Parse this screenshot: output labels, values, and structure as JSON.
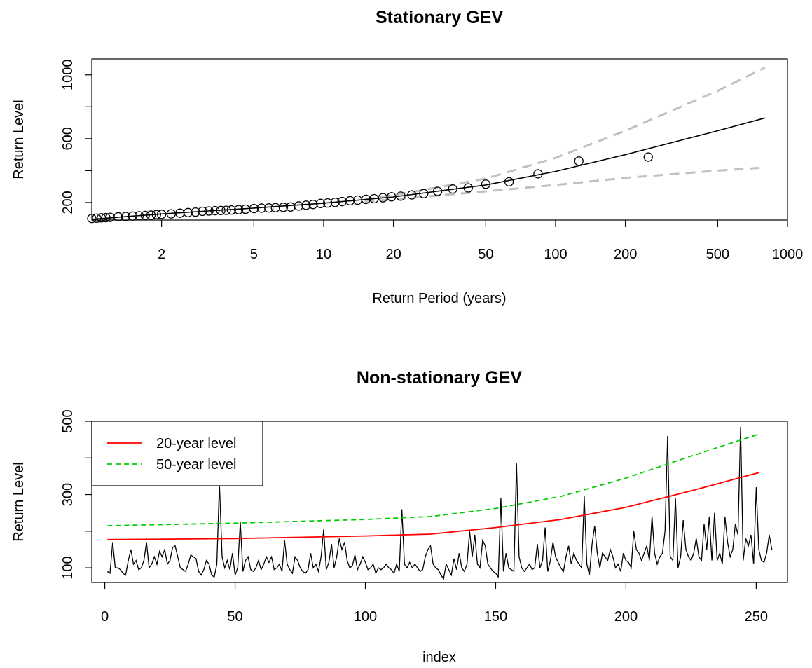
{
  "chart_data": [
    {
      "type": "line",
      "title": "Stationary GEV",
      "xlabel": "Return Period (years)",
      "ylabel": "Return Level",
      "x_scale": "log",
      "xlim": [
        1.0,
        1000
      ],
      "ylim": [
        90,
        1100
      ],
      "x_ticks": [
        2,
        5,
        10,
        20,
        50,
        100,
        200,
        500,
        1000
      ],
      "y_ticks": [
        200,
        600,
        1000
      ],
      "grid": false,
      "series": [
        {
          "role": "fitted return level curve",
          "style": "solid black line",
          "x": [
            1.0,
            1.5,
            2,
            3,
            5,
            10,
            20,
            50,
            100,
            200,
            500,
            800
          ],
          "y": [
            95,
            115,
            128,
            145,
            165,
            196,
            235,
            310,
            395,
            500,
            650,
            730
          ]
        },
        {
          "role": "upper confidence bound",
          "style": "dashed grey line",
          "x": [
            15,
            20,
            50,
            100,
            200,
            500,
            800
          ],
          "y": [
            218,
            245,
            350,
            480,
            650,
            900,
            1045
          ]
        },
        {
          "role": "lower confidence bound",
          "style": "dashed grey line",
          "x": [
            15,
            20,
            50,
            100,
            200,
            500,
            800
          ],
          "y": [
            205,
            220,
            270,
            310,
            355,
            400,
            420
          ]
        },
        {
          "role": "empirical return levels",
          "style": "open circles",
          "x": [
            1.0,
            1.05,
            1.1,
            1.15,
            1.2,
            1.3,
            1.4,
            1.5,
            1.6,
            1.7,
            1.8,
            1.9,
            2.0,
            2.2,
            2.4,
            2.6,
            2.8,
            3.0,
            3.2,
            3.4,
            3.6,
            3.8,
            4.0,
            4.3,
            4.6,
            5.0,
            5.4,
            5.8,
            6.2,
            6.7,
            7.2,
            7.8,
            8.4,
            9.0,
            9.7,
            10.4,
            11.2,
            12.0,
            13.0,
            14.0,
            15.2,
            16.5,
            18.0,
            19.6,
            21.5,
            24.0,
            27.0,
            31.0,
            36.0,
            42.0,
            50.0,
            63.0,
            84.0,
            126.0,
            251.0
          ],
          "y": [
            100,
            102,
            104,
            105,
            107,
            110,
            112,
            115,
            117,
            119,
            121,
            124,
            126,
            129,
            133,
            137,
            140,
            145,
            147,
            149,
            150,
            151,
            153,
            155,
            158,
            162,
            165,
            166,
            168,
            170,
            172,
            178,
            183,
            188,
            194,
            197,
            201,
            206,
            211,
            215,
            220,
            224,
            230,
            236,
            240,
            248,
            256,
            270,
            285,
            292,
            315,
            330,
            380,
            460,
            485
          ]
        }
      ]
    },
    {
      "type": "line",
      "title": "Non-stationary GEV",
      "xlabel": "index",
      "ylabel": "Return Level",
      "xlim": [
        -5,
        262
      ],
      "ylim": [
        60,
        500
      ],
      "x_ticks": [
        0,
        50,
        100,
        150,
        200,
        250
      ],
      "y_ticks": [
        100,
        300,
        500
      ],
      "grid": false,
      "legend": "top-left",
      "legend_entries": [
        "20-year level",
        "50-year level"
      ],
      "observed": {
        "style": "solid black line",
        "values": [
          90,
          85,
          170,
          100,
          100,
          95,
          85,
          80,
          120,
          150,
          110,
          120,
          95,
          100,
          120,
          170,
          100,
          110,
          130,
          110,
          145,
          130,
          150,
          110,
          120,
          155,
          160,
          130,
          100,
          95,
          90,
          110,
          135,
          130,
          125,
          90,
          80,
          95,
          120,
          110,
          80,
          75,
          110,
          330,
          130,
          100,
          120,
          95,
          140,
          80,
          100,
          225,
          90,
          120,
          130,
          95,
          90,
          100,
          120,
          95,
          110,
          130,
          115,
          130,
          95,
          100,
          110,
          90,
          175,
          110,
          95,
          85,
          130,
          120,
          100,
          90,
          85,
          95,
          140,
          100,
          110,
          90,
          130,
          205,
          95,
          115,
          165,
          100,
          130,
          180,
          150,
          170,
          120,
          100,
          105,
          135,
          95,
          110,
          130,
          115,
          95,
          100,
          110,
          85,
          100,
          95,
          100,
          110,
          100,
          95,
          85,
          110,
          90,
          260,
          110,
          100,
          115,
          100,
          110,
          100,
          90,
          95,
          130,
          150,
          160,
          110,
          100,
          95,
          80,
          70,
          110,
          95,
          80,
          125,
          95,
          140,
          100,
          90,
          110,
          200,
          130,
          190,
          110,
          100,
          175,
          160,
          110,
          100,
          90,
          85,
          75,
          290,
          90,
          140,
          100,
          95,
          90,
          385,
          130,
          100,
          90,
          100,
          110,
          95,
          100,
          165,
          100,
          120,
          210,
          90,
          120,
          170,
          130,
          115,
          100,
          90,
          130,
          160,
          110,
          140,
          120,
          110,
          100,
          295,
          110,
          80,
          165,
          215,
          140,
          100,
          140,
          130,
          120,
          150,
          130,
          100,
          110,
          90,
          140,
          120,
          115,
          100,
          200,
          150,
          140,
          120,
          140,
          160,
          120,
          240,
          140,
          110,
          130,
          140,
          200,
          460,
          130,
          120,
          290,
          100,
          130,
          230,
          150,
          130,
          120,
          140,
          180,
          130,
          120,
          220,
          150,
          240,
          120,
          250,
          120,
          140,
          110,
          240,
          170,
          130,
          150,
          220,
          190,
          485,
          120,
          180,
          160,
          190,
          110,
          320,
          150,
          120,
          115,
          140,
          190,
          150
        ]
      },
      "series": [
        {
          "name": "20-year level",
          "style": "solid red line",
          "x": [
            1,
            50,
            100,
            125,
            150,
            175,
            200,
            225,
            251
          ],
          "y": [
            177,
            180,
            187,
            192,
            210,
            232,
            265,
            310,
            360
          ]
        },
        {
          "name": "50-year level",
          "style": "dashed green line",
          "x": [
            1,
            50,
            100,
            125,
            150,
            175,
            200,
            225,
            251
          ],
          "y": [
            215,
            222,
            232,
            240,
            262,
            295,
            345,
            405,
            465
          ]
        }
      ]
    }
  ],
  "colors": {
    "fitted": "#000000",
    "ci": "#c0c0c0",
    "observed": "#000000",
    "level20": "#ff0000",
    "level50": "#00cd00"
  }
}
